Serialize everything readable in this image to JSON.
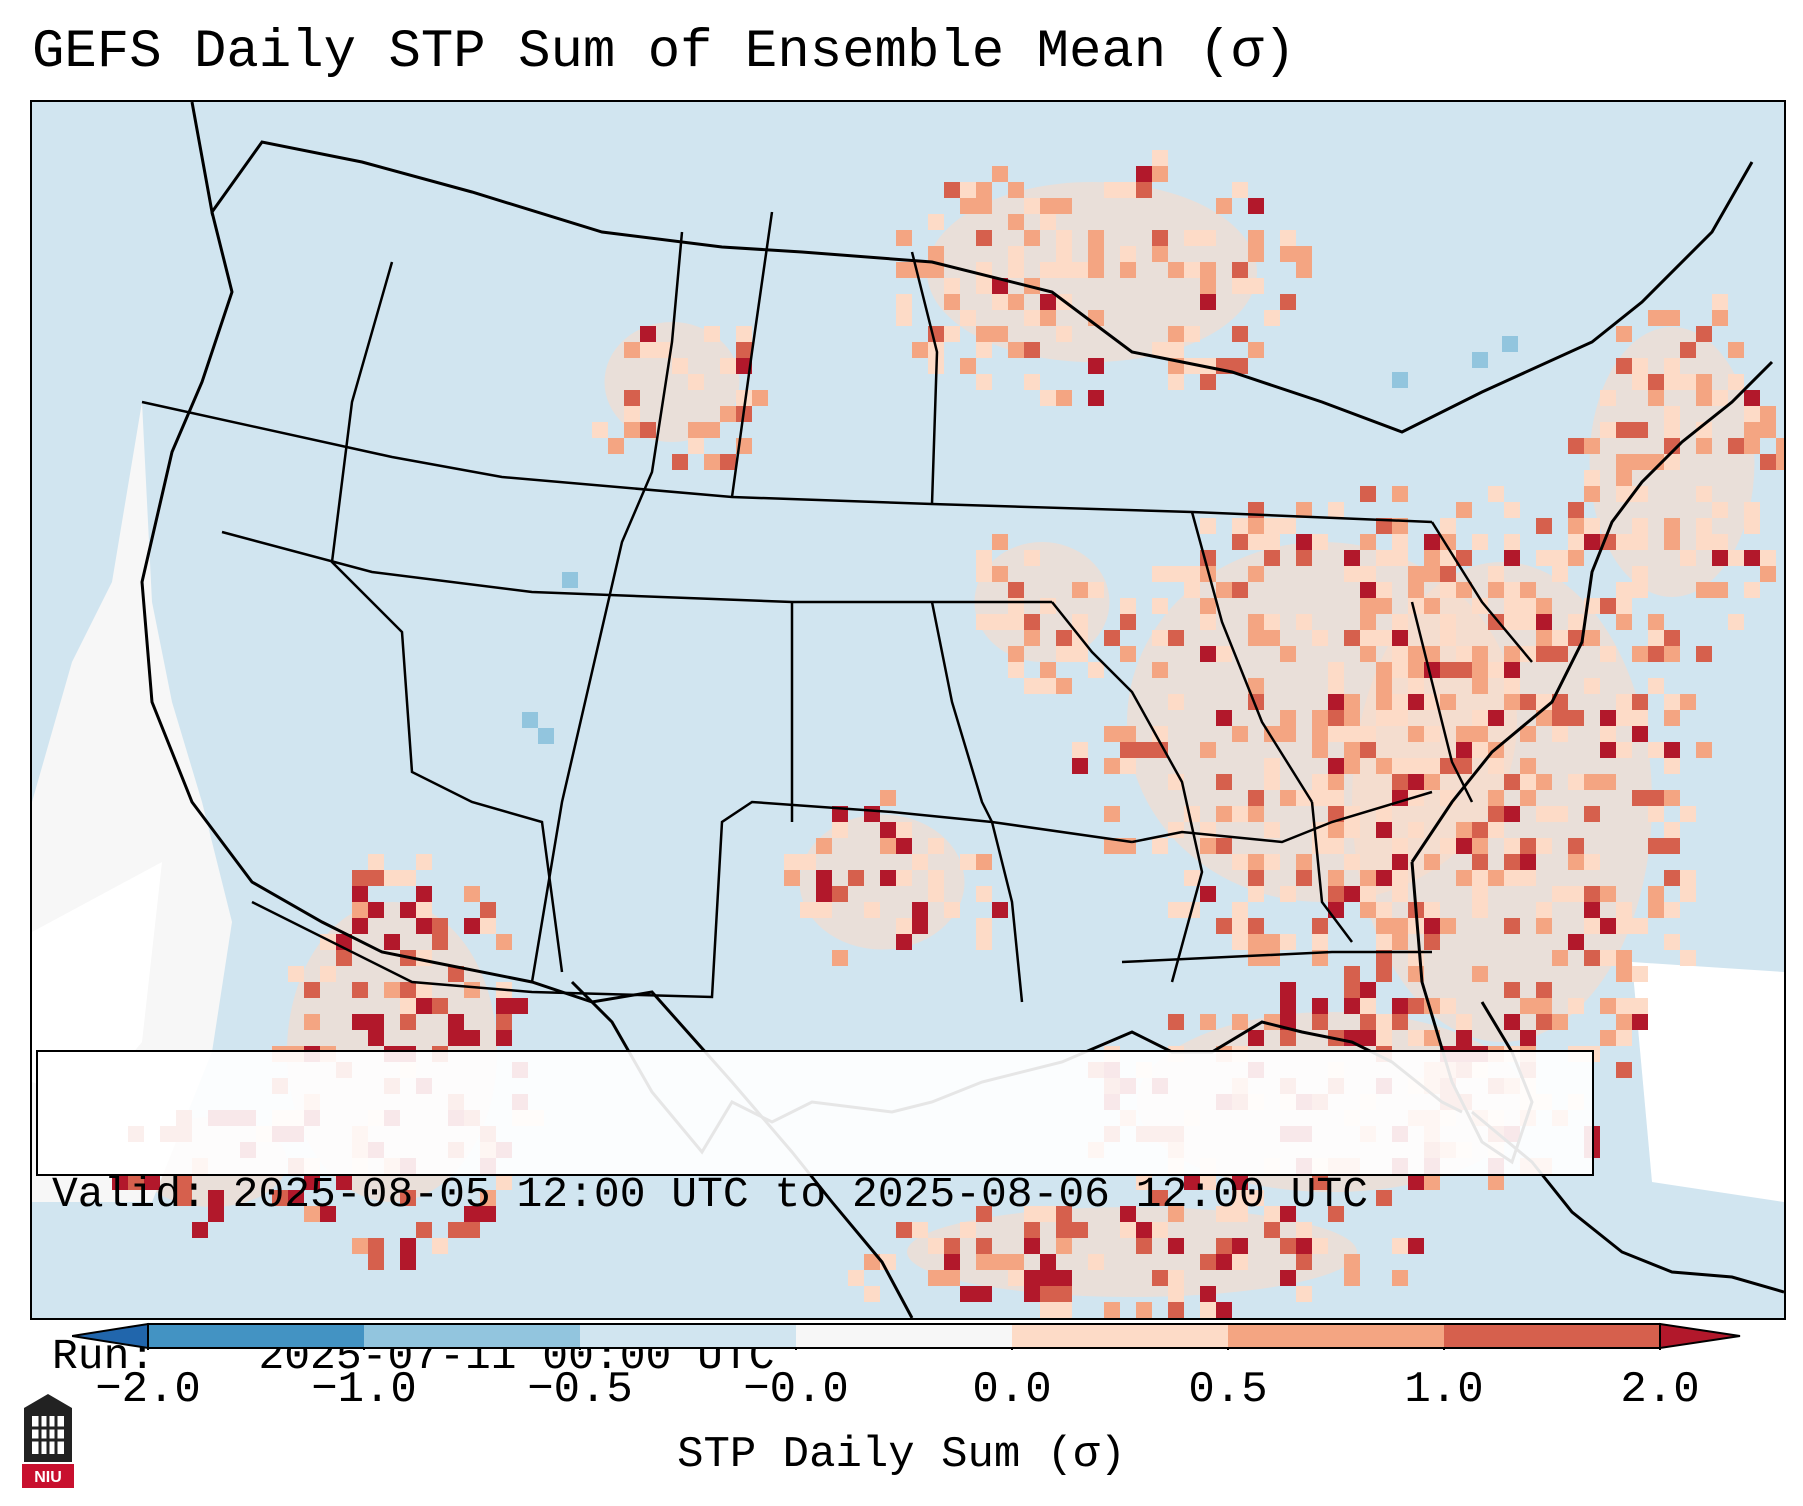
{
  "header": {
    "title": "GEFS Daily STP Sum of Ensemble Mean (σ)"
  },
  "info": {
    "valid_label": "Valid:",
    "valid_value": "2025-08-05 12:00 UTC to 2025-08-06 12:00 UTC",
    "run_label": "Run:",
    "run_value": "2025-07-11 00:00 UTC"
  },
  "colorbar": {
    "title": "STP Daily Sum (σ)",
    "tick_labels": [
      "−2.0",
      "−1.0",
      "−0.5",
      "−0.0",
      "0.0",
      "0.5",
      "1.0",
      "2.0"
    ],
    "colors": [
      "#4393c3",
      "#92c5de",
      "#d1e5f0",
      "#f7f7f7",
      "#fddbc7",
      "#f4a582",
      "#d6604d",
      "#b2182b"
    ],
    "extend": "both"
  },
  "map": {
    "projection": "Lambert Conformal, CONUS",
    "ocean_color": "#d1e5f0",
    "land_color": "#d1e5f0",
    "border_color": "#000000"
  },
  "logo": {
    "text": "NIU",
    "icon": "niu-logo-icon"
  }
}
